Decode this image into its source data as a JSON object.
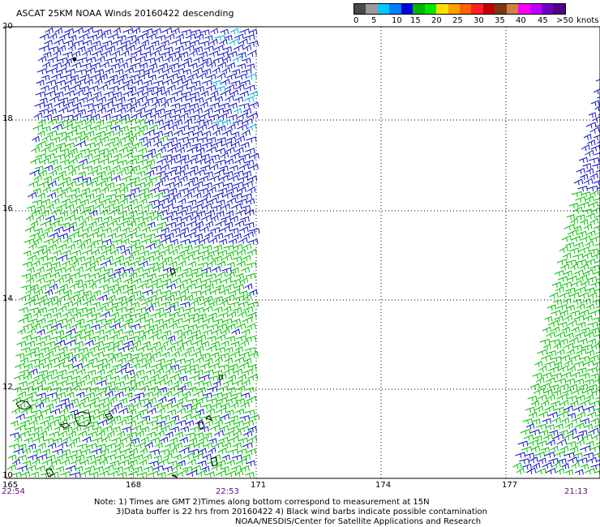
{
  "title": "ASCAT 25KM NOAA Winds 20160422 descending",
  "legend": {
    "ticks": [
      "0",
      "5",
      "10",
      "15",
      "20",
      "25",
      "30",
      "35",
      "40",
      "45",
      ">50"
    ],
    "unit": "knots",
    "colors": [
      "#4a4a4a",
      "#9a9a9a",
      "#00c8ff",
      "#0080ff",
      "#0000e0",
      "#00b400",
      "#00e800",
      "#ffe000",
      "#ffa000",
      "#ff6000",
      "#ff2020",
      "#c00000",
      "#7a3a10",
      "#d08040",
      "#ff00ff",
      "#c000ff",
      "#7000c0",
      "#500080"
    ]
  },
  "map": {
    "lat_labels": [
      "20",
      "18",
      "16",
      "14",
      "12",
      "10"
    ],
    "lon_labels": [
      "165",
      "168",
      "171",
      "174",
      "177"
    ],
    "time_labels": [
      "22:54",
      "22:53",
      "21:13"
    ]
  },
  "notes": {
    "line1": "Note: 1) Times are GMT 2)Times along bottom correspond to measurement at 15N",
    "line2": "3)Data buffer is 22 hrs from 20160422 4) Black wind barbs indicate possible contamination",
    "line3": "NOAA/NESDIS/Center for Satellite Applications and Research"
  },
  "colors": {
    "blue_barb": "#1010c8",
    "green_barb": "#00c000",
    "cyan_barb": "#00b0e0",
    "time_label": "#6a0a8a",
    "grid": "#000000"
  }
}
